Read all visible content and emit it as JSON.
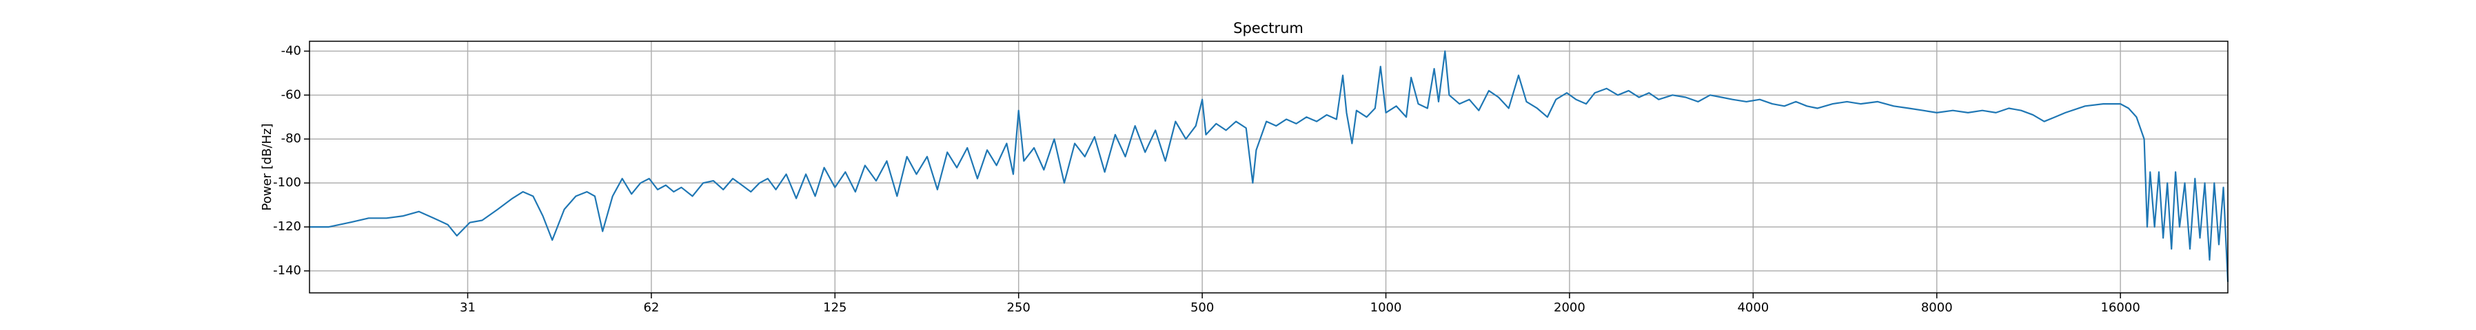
{
  "chart_data": {
    "type": "line",
    "title": "Spectrum",
    "y_label": "Power [dB/Hz]",
    "xscale": "log",
    "grid": true,
    "color": "#1f77b4",
    "xlim": [
      17.2,
      24000
    ],
    "ylim": [
      -150,
      -35.5
    ],
    "xticks": [
      {
        "value": 31.25,
        "label": "31"
      },
      {
        "value": 62.5,
        "label": "62"
      },
      125,
      250,
      500,
      1000,
      2000,
      4000,
      8000,
      16000
    ],
    "yticks": [
      -140,
      -120,
      -100,
      -80,
      -60,
      -40
    ],
    "x": [
      17.2,
      18.5,
      20,
      21.5,
      23,
      24.5,
      26,
      27.5,
      29,
      30,
      31.5,
      33,
      35,
      37,
      38.5,
      40,
      41.5,
      43,
      45,
      47,
      49,
      50.5,
      52,
      54,
      56,
      58,
      60,
      62,
      64,
      66,
      68,
      70,
      73,
      76,
      79,
      82,
      85,
      88,
      91,
      94,
      97,
      100,
      104,
      108,
      112,
      116,
      120,
      125,
      130,
      135,
      140,
      146,
      152,
      158,
      164,
      170,
      177,
      184,
      191,
      198,
      206,
      214,
      222,
      230,
      239,
      245,
      250,
      255,
      265,
      275,
      286,
      297,
      309,
      321,
      333,
      346,
      360,
      374,
      388,
      403,
      419,
      435,
      452,
      470,
      488,
      500,
      507,
      527,
      547,
      568,
      590,
      605,
      613,
      637,
      661,
      687,
      713,
      741,
      770,
      800,
      830,
      850,
      862,
      880,
      895,
      930,
      960,
      980,
      1000,
      1040,
      1080,
      1100,
      1130,
      1170,
      1200,
      1220,
      1250,
      1270,
      1320,
      1370,
      1420,
      1475,
      1530,
      1590,
      1650,
      1700,
      1770,
      1840,
      1900,
      1980,
      2050,
      2130,
      2200,
      2300,
      2400,
      2500,
      2600,
      2700,
      2800,
      2950,
      3100,
      3250,
      3400,
      3550,
      3700,
      3900,
      4100,
      4300,
      4500,
      4700,
      4900,
      5100,
      5400,
      5700,
      6000,
      6400,
      6800,
      7200,
      7600,
      8000,
      8500,
      9000,
      9500,
      10000,
      10500,
      11000,
      11500,
      12000,
      12500,
      13000,
      14000,
      15000,
      16000,
      16500,
      17000,
      17500,
      17700,
      17900,
      18200,
      18500,
      18800,
      19100,
      19400,
      19700,
      20000,
      20400,
      20800,
      21200,
      21600,
      22000,
      22400,
      22800,
      23200,
      23600,
      24000
    ],
    "values": [
      -120,
      -120,
      -118,
      -116,
      -116,
      -115,
      -113,
      -116,
      -119,
      -124,
      -118,
      -117,
      -112,
      -107,
      -104,
      -106,
      -115,
      -126,
      -112,
      -106,
      -104,
      -106,
      -122,
      -106,
      -98,
      -105,
      -100,
      -98,
      -103,
      -101,
      -104,
      -102,
      -106,
      -100,
      -99,
      -103,
      -98,
      -101,
      -104,
      -100,
      -98,
      -103,
      -96,
      -107,
      -96,
      -106,
      -93,
      -102,
      -95,
      -104,
      -92,
      -99,
      -90,
      -106,
      -88,
      -96,
      -88,
      -103,
      -86,
      -93,
      -84,
      -98,
      -85,
      -92,
      -82,
      -96,
      -67,
      -90,
      -84,
      -94,
      -80,
      -100,
      -82,
      -88,
      -79,
      -95,
      -78,
      -88,
      -74,
      -86,
      -76,
      -90,
      -72,
      -80,
      -74,
      -62,
      -78,
      -73,
      -76,
      -72,
      -75,
      -100,
      -85,
      -72,
      -74,
      -71,
      -73,
      -70,
      -72,
      -69,
      -71,
      -51,
      -68,
      -82,
      -67,
      -70,
      -66,
      -47,
      -68,
      -65,
      -70,
      -52,
      -64,
      -66,
      -48,
      -63,
      -40,
      -60,
      -64,
      -62,
      -67,
      -58,
      -61,
      -66,
      -51,
      -63,
      -66,
      -70,
      -62,
      -59,
      -62,
      -64,
      -59,
      -57,
      -60,
      -58,
      -61,
      -59,
      -62,
      -60,
      -61,
      -63,
      -60,
      -61,
      -62,
      -63,
      -62,
      -64,
      -65,
      -63,
      -65,
      -66,
      -64,
      -63,
      -64,
      -63,
      -65,
      -66,
      -67,
      -68,
      -67,
      -68,
      -67,
      -68,
      -66,
      -67,
      -69,
      -72,
      -70,
      -68,
      -65,
      -64,
      -64,
      -66,
      -70,
      -80,
      -120,
      -95,
      -120,
      -95,
      -125,
      -100,
      -130,
      -95,
      -120,
      -100,
      -130,
      -98,
      -125,
      -100,
      -135,
      -100,
      -128,
      -102,
      -145
    ]
  }
}
